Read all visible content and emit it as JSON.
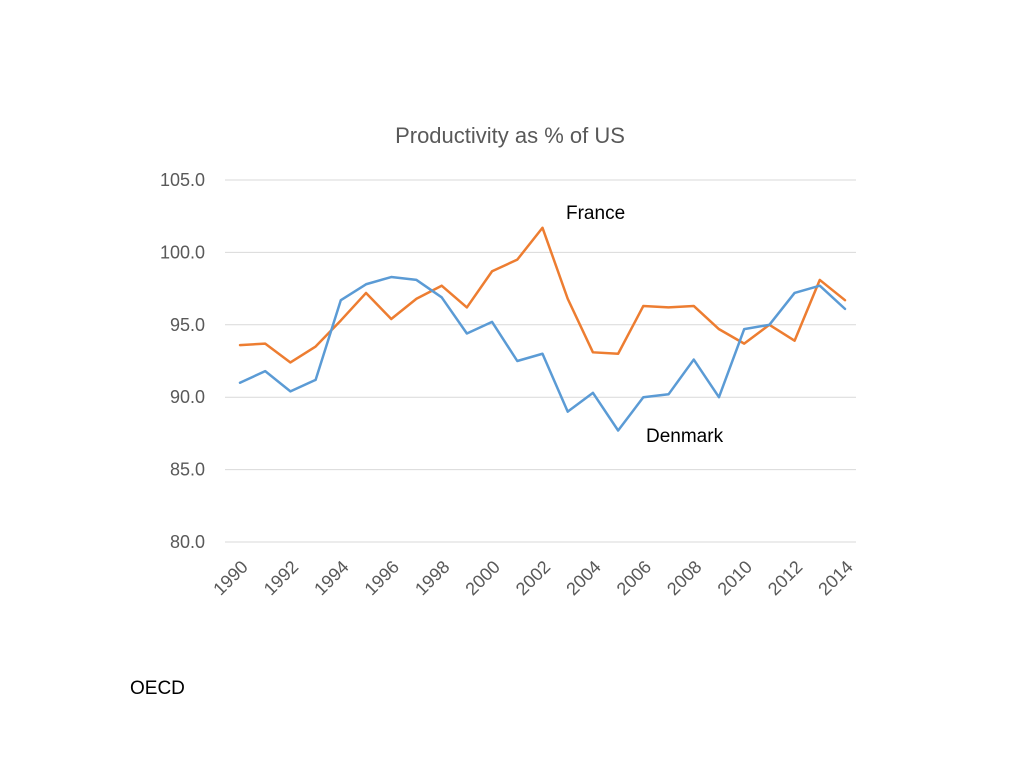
{
  "source": "OECD",
  "chart_data": {
    "type": "line",
    "title": "Productivity as % of US",
    "x": [
      1990,
      1991,
      1992,
      1993,
      1994,
      1995,
      1996,
      1997,
      1998,
      1999,
      2000,
      2001,
      2002,
      2003,
      2004,
      2005,
      2006,
      2007,
      2008,
      2009,
      2010,
      2011,
      2012,
      2013,
      2014
    ],
    "x_tick_labels": [
      "1990",
      "1992",
      "1994",
      "1996",
      "1998",
      "2000",
      "2002",
      "2004",
      "2006",
      "2008",
      "2010",
      "2012",
      "2014"
    ],
    "y_ticks": [
      105.0,
      100.0,
      95.0,
      90.0,
      85.0,
      80.0
    ],
    "y_tick_labels": [
      "105.0",
      "100.0",
      "95.0",
      "90.0",
      "85.0",
      "80.0"
    ],
    "ylim": [
      80,
      105
    ],
    "grid": true,
    "legend": "inline-labels",
    "gridline_color": "#d9d9d9",
    "axis_text_color": "#595959",
    "series": [
      {
        "name": "France",
        "color": "#ED7D31",
        "values": [
          93.6,
          93.7,
          92.4,
          93.5,
          95.3,
          97.2,
          95.4,
          96.8,
          97.7,
          96.2,
          98.7,
          99.5,
          101.7,
          96.8,
          93.1,
          93.0,
          96.3,
          96.2,
          96.3,
          94.7,
          93.7,
          95.0,
          93.9,
          98.1,
          96.7
        ]
      },
      {
        "name": "Denmark",
        "color": "#5B9BD5",
        "values": [
          91.0,
          91.8,
          90.4,
          91.2,
          96.7,
          97.8,
          98.3,
          98.1,
          96.9,
          94.4,
          95.2,
          92.5,
          93.0,
          89.0,
          90.3,
          87.7,
          90.0,
          90.2,
          92.6,
          90.0,
          94.7,
          95.0,
          97.2,
          97.7,
          96.1
        ]
      }
    ]
  }
}
